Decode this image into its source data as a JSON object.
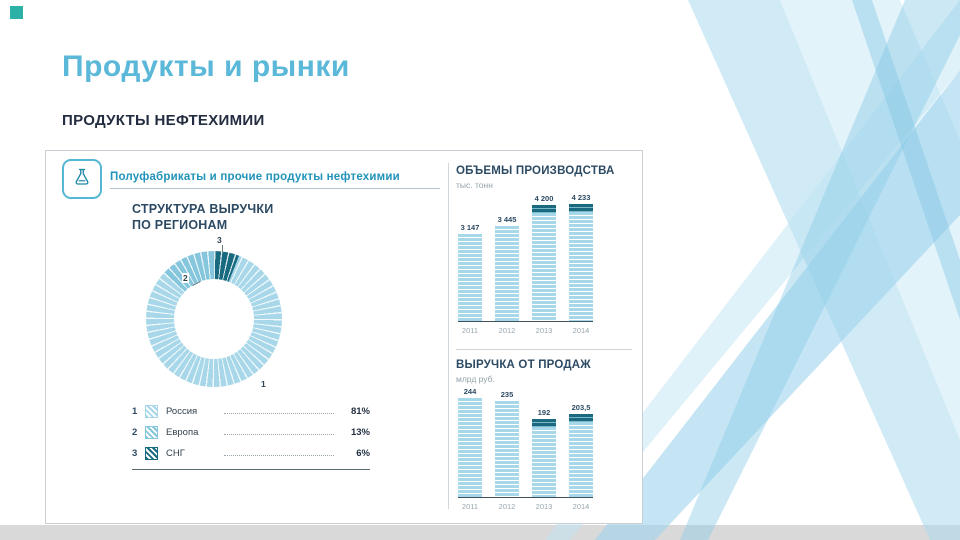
{
  "slide": {
    "title": "Продукты и рынки",
    "subtitle": "ПРОДУКТЫ НЕФТЕХИМИИ"
  },
  "colors": {
    "accent_teal": "#2bb1a6",
    "title_blue": "#5bb8d9",
    "header_teal": "#2193b8",
    "navy": "#2c4a63",
    "bar_light": "#a6d8ea",
    "bar_dark": "#1a697e",
    "ribbon_blue": "#8ecde8"
  },
  "infographic": {
    "header": "Полуфабрикаты и прочие продукты нефтехимии",
    "flask_icon": "flask-icon",
    "regions": {
      "heading_line1": "СТРУКТУРА ВЫРУЧКИ",
      "heading_line2": "ПО РЕГИОНАМ",
      "legend": [
        {
          "num": "1",
          "label": "Россия",
          "pct": "81%"
        },
        {
          "num": "2",
          "label": "Европа",
          "pct": "13%"
        },
        {
          "num": "3",
          "label": "СНГ",
          "pct": "6%"
        }
      ]
    },
    "production": {
      "title": "ОБЪЕМЫ ПРОИЗВОДСТВА",
      "unit": "тыс. тонн"
    },
    "revenue": {
      "title": "ВЫРУЧКА ОТ ПРОДАЖ",
      "unit": "млрд руб."
    }
  },
  "chart_data": [
    {
      "type": "pie",
      "title": "СТРУКТУРА ВЫРУЧКИ ПО РЕГИОНАМ",
      "labels": [
        "Россия",
        "Европа",
        "СНГ"
      ],
      "values": [
        81,
        13,
        6
      ],
      "unit": "%",
      "colors": [
        "#a7d7e8",
        "#85c6dd",
        "#186a80"
      ],
      "start_order": [
        2,
        0,
        1
      ],
      "donut": true,
      "legend_position": "below"
    },
    {
      "type": "bar",
      "title": "ОБЪЕМЫ ПРОИЗВОДСТВА",
      "unit": "тыс. тонн",
      "categories": [
        "2011",
        "2012",
        "2013",
        "2014"
      ],
      "values": [
        3147,
        3445,
        4200,
        4233
      ],
      "value_labels": [
        "3 147",
        "3 445",
        "4 200",
        "4 233"
      ],
      "caps": [
        false,
        false,
        true,
        true
      ],
      "ylim": [
        0,
        4500
      ],
      "grid": false,
      "legend": "none"
    },
    {
      "type": "bar",
      "title": "ВЫРУЧКА ОТ ПРОДАЖ",
      "unit": "млрд руб.",
      "categories": [
        "2011",
        "2012",
        "2013",
        "2014"
      ],
      "values": [
        244,
        235,
        192,
        203.5
      ],
      "value_labels": [
        "244",
        "235",
        "192",
        "203,5"
      ],
      "caps": [
        false,
        false,
        true,
        true
      ],
      "ylim": [
        0,
        260
      ],
      "grid": false,
      "legend": "none"
    }
  ]
}
